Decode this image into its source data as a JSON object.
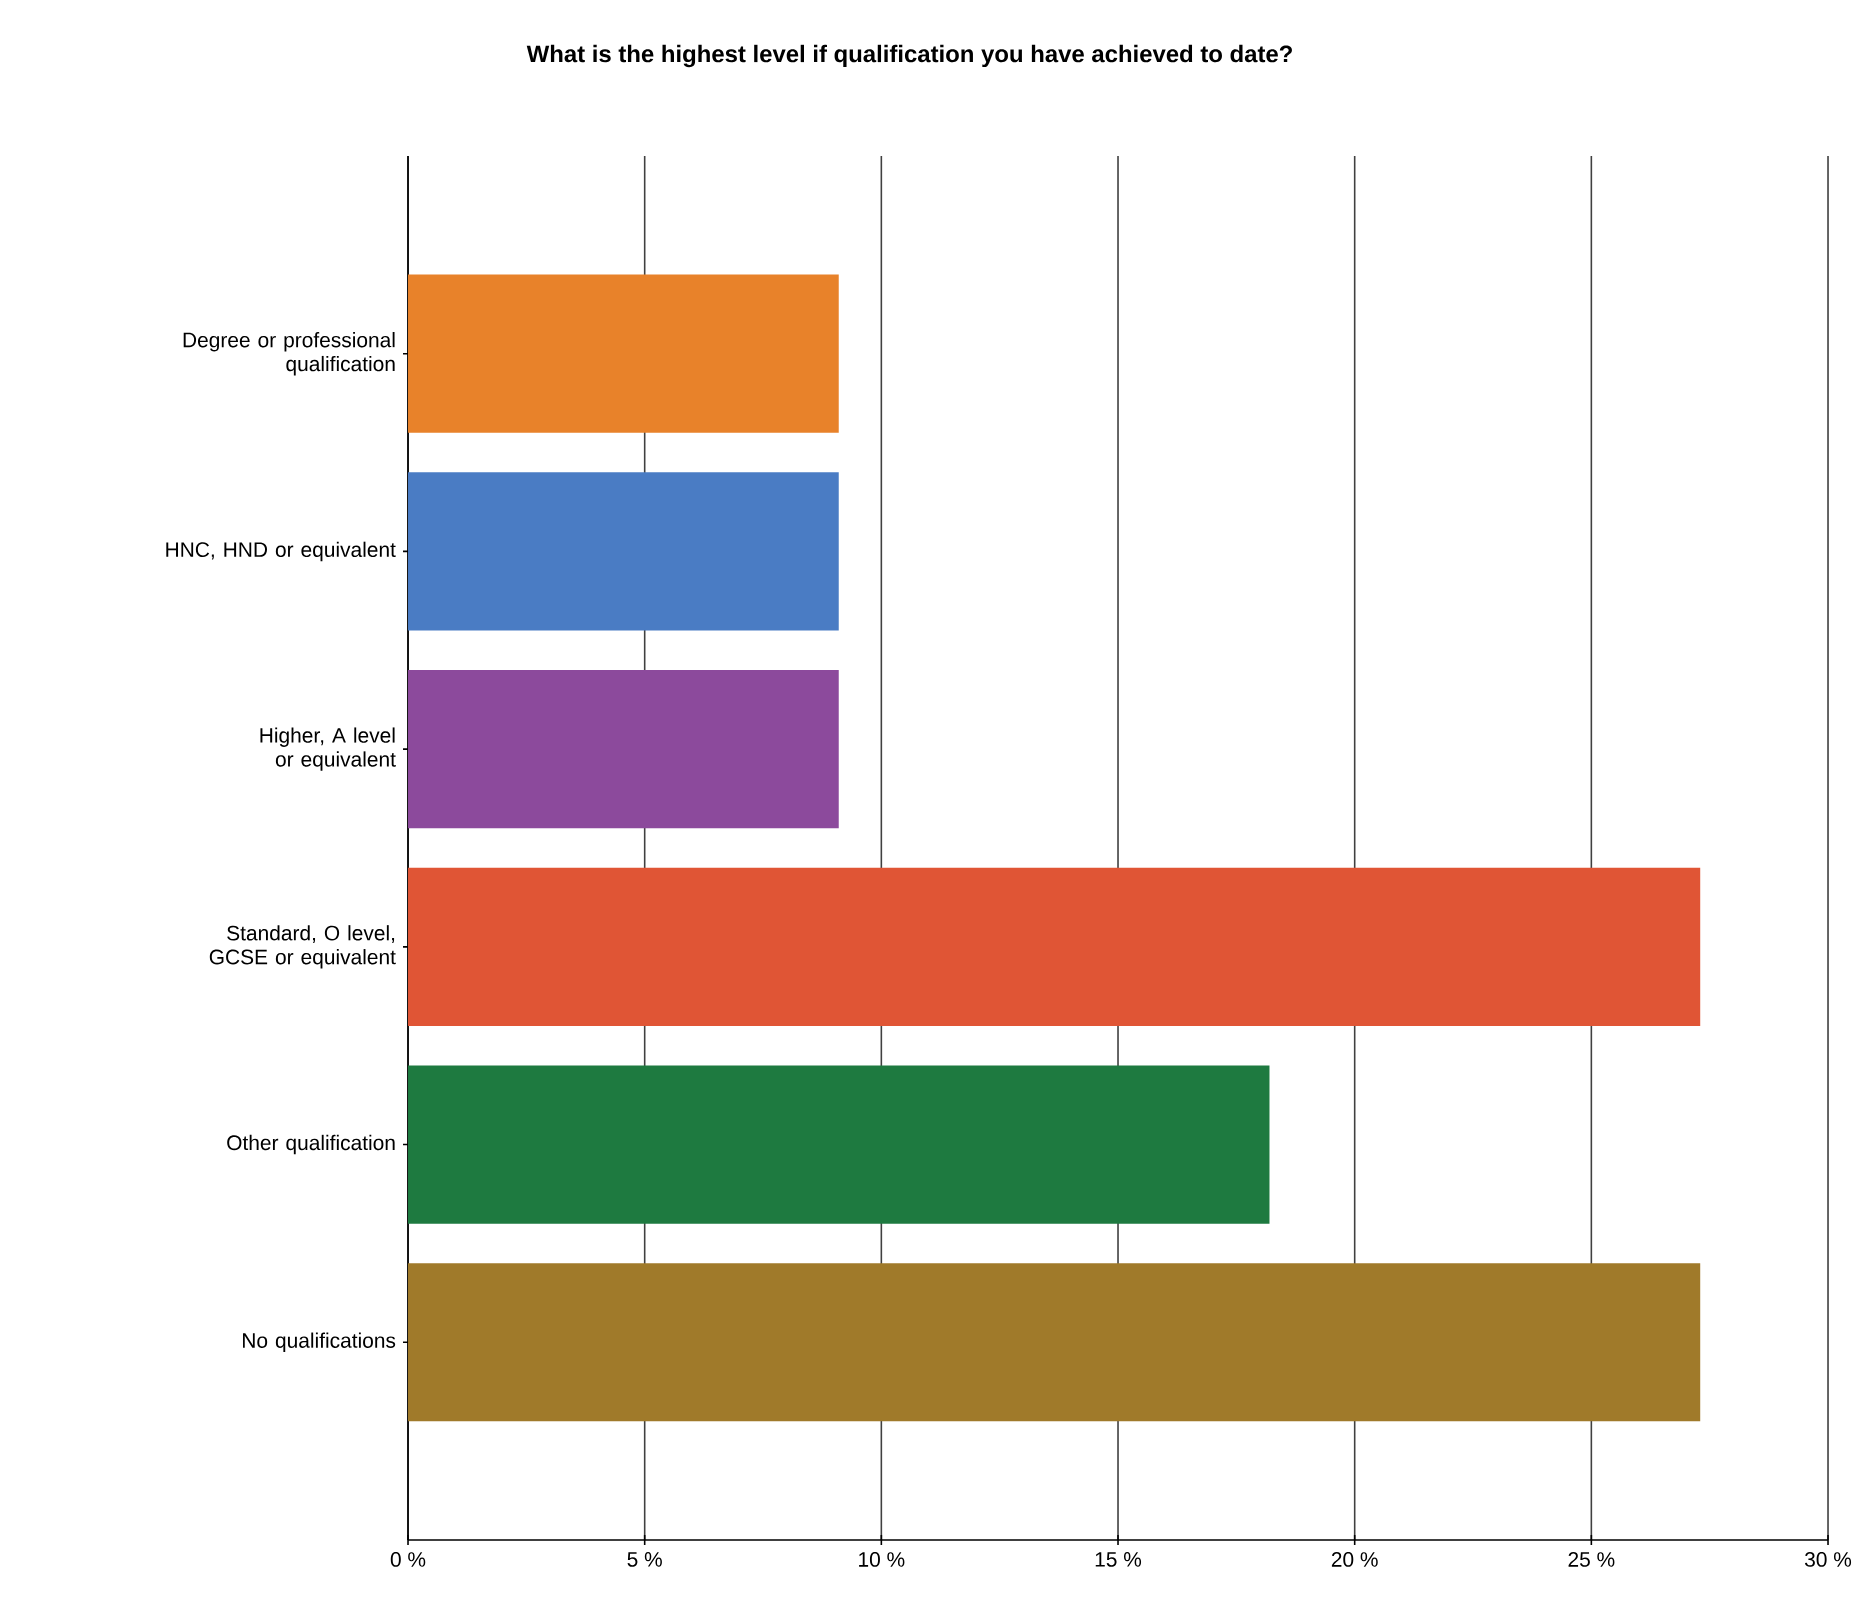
{
  "chart_data": {
    "type": "bar",
    "orientation": "horizontal",
    "title": "What is the highest level if qualification you have achieved to date?",
    "categories": [
      "Degree or professional qualification",
      "HNC, HND or equivalent",
      "Higher, A level or equivalent",
      "Standard, O level, GCSE or equivalent",
      "Other qualification",
      "No qualifications"
    ],
    "values": [
      9.1,
      9.1,
      9.1,
      27.3,
      18.2,
      27.3
    ],
    "colors": [
      "#e8822a",
      "#4a7cc4",
      "#8c4a9c",
      "#e05535",
      "#1e7a40",
      "#a07a2a"
    ],
    "xlim": [
      0,
      30
    ],
    "xticks": [
      {
        "value": 0,
        "label": "0 %"
      },
      {
        "value": 5,
        "label": "5 %"
      },
      {
        "value": 10,
        "label": "10 %"
      },
      {
        "value": 15,
        "label": "15 %"
      },
      {
        "value": 20,
        "label": "20 %"
      },
      {
        "value": 25,
        "label": "25 %"
      },
      {
        "value": 30,
        "label": "30 %"
      }
    ],
    "grid": "x"
  }
}
